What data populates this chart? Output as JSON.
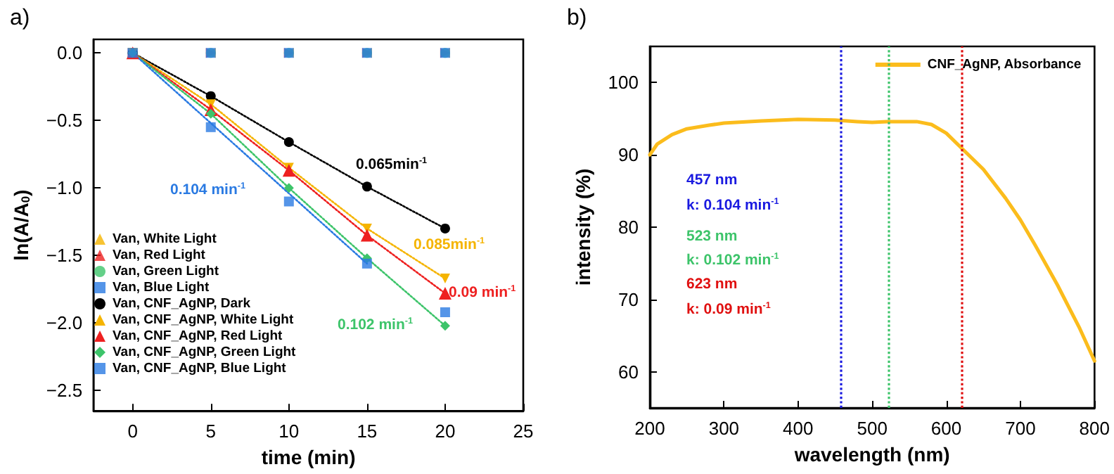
{
  "chart_data": [
    {
      "type": "line",
      "title": "a)",
      "xlabel": "time (min)",
      "ylabel": "ln(A/A$_{0}$)",
      "x": [
        0,
        5,
        10,
        15,
        20
      ],
      "xlim": [
        -2.5,
        25
      ],
      "xticks": [
        0,
        5,
        10,
        15,
        20,
        25
      ],
      "ylim": [
        -2.65,
        0.1
      ],
      "yticks": [
        -2.5,
        {
          "value": -2,
          "label": "−2.0"
        },
        -1.5,
        {
          "value": -1,
          "label": "−1.0"
        },
        -0.5,
        {
          "value": 0,
          "label": "0.0"
        }
      ],
      "legend": "bottom left",
      "grid": false,
      "line_style": "dotted",
      "series": [
        {
          "name": "Van, White Light",
          "type": "scatter",
          "marker": "triangle-left",
          "color": "#f5b400",
          "values": [
            0,
            0,
            0,
            0,
            0
          ]
        },
        {
          "name": "Van, Red Light",
          "type": "scatter",
          "marker": "triangle-right",
          "color": "#ee2020",
          "values": [
            0,
            0,
            0,
            0,
            0
          ]
        },
        {
          "name": "Van, Green Light",
          "type": "scatter",
          "marker": "circle",
          "color": "#3dc46a",
          "values": [
            null,
            0,
            0,
            0,
            0
          ]
        },
        {
          "name": "Van, Blue Light",
          "type": "scatter",
          "marker": "square",
          "color": "#2a7ae2",
          "values": [
            0,
            0,
            0,
            0,
            0
          ]
        },
        {
          "name": "Van, CNF_AgNP, Dark",
          "marker": "circle",
          "color": "#000000",
          "values": [
            0,
            -0.32,
            -0.66,
            -0.99,
            -1.3
          ]
        },
        {
          "name": "Van, CNF_AgNP, White Light",
          "marker": "triangle-down",
          "color": "#f5b400",
          "values": [
            0,
            -0.38,
            -0.85,
            -1.3,
            -1.67
          ]
        },
        {
          "name": "Van, CNF_AgNP, Red Light",
          "marker": "triangle",
          "color": "#ee2020",
          "values": [
            0,
            -0.42,
            -0.87,
            -1.35,
            -1.78
          ]
        },
        {
          "name": "Van, CNF_AgNP, Green Light",
          "marker": "diamond",
          "color": "#3dc46a",
          "values": [
            0,
            -0.45,
            -1.0,
            -1.52,
            -2.02
          ]
        },
        {
          "name": "Van, CNF_AgNP, Blue Light",
          "type": "scatter",
          "marker": "square",
          "color": "#2a7ae2",
          "values": [
            0,
            -0.55,
            -1.1,
            -1.56,
            -1.92
          ]
        },
        {
          "type": "line",
          "marker": "none",
          "color": "#2a7ae2",
          "x": [
            0,
            15
          ],
          "values": [
            0,
            -1.56
          ]
        }
      ],
      "annotations": [
        "0.065min$^{-1}$",
        "0.104 min$^{-1}$",
        "0.085min$^{-1}$",
        "0.09 min$^{-1}$",
        "0.102 min$^{-1}$"
      ]
    },
    {
      "type": "line",
      "title": "b)",
      "xlabel": "wavelength (nm)",
      "ylabel": "intensity (%)",
      "xlim": [
        200,
        800
      ],
      "xticks": [
        200,
        300,
        400,
        500,
        600,
        700,
        800
      ],
      "ylim": [
        55,
        105
      ],
      "yticks": [
        60,
        70,
        80,
        90,
        100
      ],
      "legend": "top right",
      "grid": false,
      "marker": "none",
      "line_style": "solid",
      "series": [
        {
          "name": "CNF_AgNP, Absorbance",
          "color": "#fbbc1c",
          "x": [
            200,
            210,
            230,
            250,
            280,
            300,
            350,
            400,
            450,
            480,
            500,
            520,
            560,
            580,
            600,
            620,
            650,
            680,
            700,
            720,
            750,
            780,
            800
          ],
          "values": [
            90,
            91.5,
            92.8,
            93.6,
            94.1,
            94.4,
            94.7,
            94.9,
            94.8,
            94.6,
            94.5,
            94.6,
            94.6,
            94.2,
            93.0,
            91.0,
            88,
            84,
            81,
            77.5,
            72,
            66,
            61.5
          ]
        }
      ],
      "ref_lines": [
        {
          "axis": "x",
          "value": 457,
          "color": "#1a1ae0",
          "line_style": "dotted"
        },
        {
          "axis": "x",
          "value": 523,
          "color": "#3dc46a",
          "line_style": "dotted"
        },
        {
          "axis": "x",
          "value": 620,
          "color": "#e01010",
          "line_style": "dotted"
        }
      ],
      "annotations": [
        "457 nm",
        "k: 0.104 min$^{-1}$",
        "523 nm",
        "k: 0.102 min$^{-1}$",
        "623 nm",
        "k: 0.09 min$^{-1}$"
      ]
    }
  ]
}
